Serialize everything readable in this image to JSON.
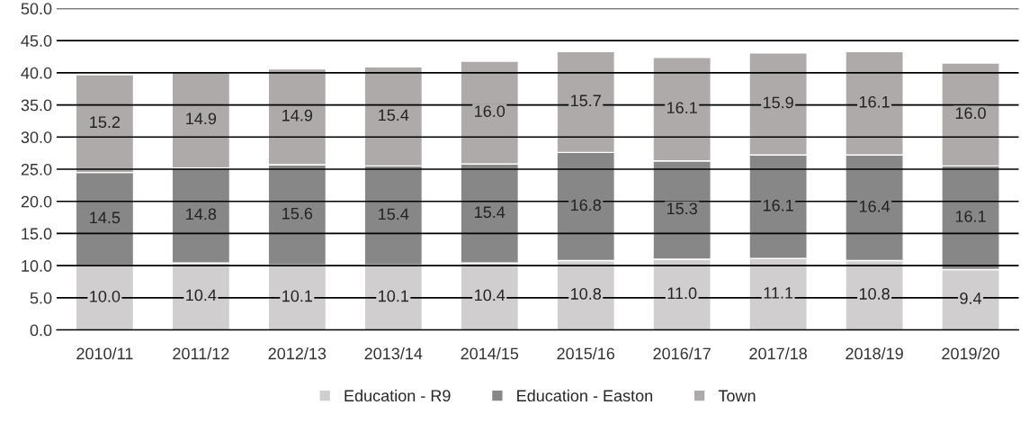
{
  "chart_data": {
    "type": "bar",
    "stacked": true,
    "categories": [
      "2010/11",
      "2011/12",
      "2012/13",
      "2013/14",
      "2014/15",
      "2015/16",
      "2016/17",
      "2017/18",
      "2018/19",
      "2019/20"
    ],
    "series": [
      {
        "name": "Education - R9",
        "color": "#d0cece",
        "values": [
          10.0,
          10.4,
          10.1,
          10.1,
          10.4,
          10.8,
          11.0,
          11.1,
          10.8,
          9.4
        ],
        "value_labels": [
          "10.0",
          "10.4",
          "10.1",
          "10.1",
          "10.4",
          "10.8",
          "11.0",
          "11.1",
          "10.8",
          "9.4"
        ]
      },
      {
        "name": "Education - Easton",
        "color": "#878787",
        "values": [
          14.5,
          14.8,
          15.6,
          15.4,
          15.4,
          16.8,
          15.3,
          16.1,
          16.4,
          16.1
        ],
        "value_labels": [
          "14.5",
          "14.8",
          "15.6",
          "15.4",
          "15.4",
          "16.8",
          "15.3",
          "16.1",
          "16.4",
          "16.1"
        ]
      },
      {
        "name": "Town",
        "color": "#aeaaaa",
        "values": [
          15.2,
          14.9,
          14.9,
          15.4,
          16.0,
          15.7,
          16.1,
          15.9,
          16.1,
          16.0
        ],
        "value_labels": [
          "15.2",
          "14.9",
          "14.9",
          "15.4",
          "16.0",
          "15.7",
          "16.1",
          "15.9",
          "16.1",
          "16.0"
        ]
      }
    ],
    "ylim": [
      0,
      50
    ],
    "yticks": [
      {
        "value": 0,
        "label": "0.0"
      },
      {
        "value": 5,
        "label": "5.0"
      },
      {
        "value": 10,
        "label": "10.0"
      },
      {
        "value": 15,
        "label": "15.0"
      },
      {
        "value": 20,
        "label": "20.0"
      },
      {
        "value": 25,
        "label": "25.0"
      },
      {
        "value": 30,
        "label": "30.0"
      },
      {
        "value": 35,
        "label": "35.0"
      },
      {
        "value": 40,
        "label": "40.0"
      },
      {
        "value": 45,
        "label": "45.0"
      },
      {
        "value": 50,
        "label": "50.0"
      }
    ],
    "grid": "y",
    "legend": "bottom"
  }
}
